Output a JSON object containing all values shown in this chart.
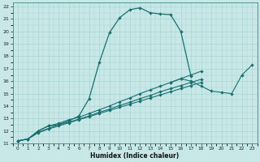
{
  "xlabel": "Humidex (Indice chaleur)",
  "xlim": [
    -0.5,
    23.5
  ],
  "ylim": [
    11,
    22.3
  ],
  "xticks": [
    0,
    1,
    2,
    3,
    4,
    5,
    6,
    7,
    8,
    9,
    10,
    11,
    12,
    13,
    14,
    15,
    16,
    17,
    18,
    19,
    20,
    21,
    22,
    23
  ],
  "yticks": [
    11,
    12,
    13,
    14,
    15,
    16,
    17,
    18,
    19,
    20,
    21,
    22
  ],
  "bg_color": "#c8e8e8",
  "grid_color": "#aad4d4",
  "line_color": "#1a7070",
  "line1_x": [
    0,
    1,
    2,
    3,
    4,
    5,
    6,
    7,
    8,
    9,
    10,
    11,
    12,
    13,
    14,
    15,
    16,
    17
  ],
  "line1_y": [
    11.2,
    11.35,
    12.0,
    12.4,
    12.5,
    12.8,
    13.2,
    14.6,
    17.5,
    19.9,
    21.1,
    21.75,
    21.9,
    21.5,
    21.4,
    21.35,
    20.0,
    16.4
  ],
  "line2_x": [
    0,
    1,
    2,
    3,
    4,
    5,
    6,
    7,
    8,
    9,
    10,
    11,
    12,
    13,
    14,
    15,
    16,
    17,
    18,
    19,
    20,
    21,
    22,
    23
  ],
  "line2_y": [
    11.2,
    11.35,
    12.0,
    12.4,
    12.6,
    12.9,
    13.1,
    13.4,
    13.7,
    14.0,
    14.35,
    14.65,
    15.0,
    15.3,
    15.6,
    15.9,
    16.2,
    16.5,
    16.8,
    null,
    null,
    null,
    null,
    null
  ],
  "line3_x": [
    0,
    1,
    2,
    3,
    4,
    5,
    6,
    7,
    8,
    9,
    10,
    11,
    12,
    13,
    14,
    15,
    16,
    17,
    18,
    19,
    20,
    21,
    22,
    23
  ],
  "line3_y": [
    11.2,
    11.35,
    11.9,
    12.2,
    12.5,
    12.7,
    12.95,
    13.2,
    13.5,
    13.75,
    14.05,
    14.3,
    14.6,
    14.85,
    15.15,
    15.4,
    15.65,
    15.9,
    16.15,
    null,
    null,
    null,
    null,
    null
  ],
  "line4_x": [
    0,
    1,
    2,
    3,
    4,
    5,
    6,
    7,
    8,
    9,
    10,
    11,
    12,
    13,
    14,
    15,
    16,
    17,
    18,
    19,
    20,
    21,
    22,
    23
  ],
  "line4_y": [
    11.2,
    11.35,
    11.85,
    12.15,
    12.4,
    12.65,
    12.9,
    13.15,
    13.4,
    13.65,
    13.9,
    14.15,
    14.4,
    14.65,
    14.9,
    15.15,
    15.4,
    15.65,
    15.9,
    null,
    null,
    null,
    null,
    null
  ],
  "line5_x": [
    15,
    16,
    17,
    18,
    19,
    20,
    21,
    22,
    23
  ],
  "line5_y": [
    15.9,
    16.2,
    16.0,
    15.6,
    15.2,
    15.1,
    15.0,
    16.5,
    17.3
  ]
}
